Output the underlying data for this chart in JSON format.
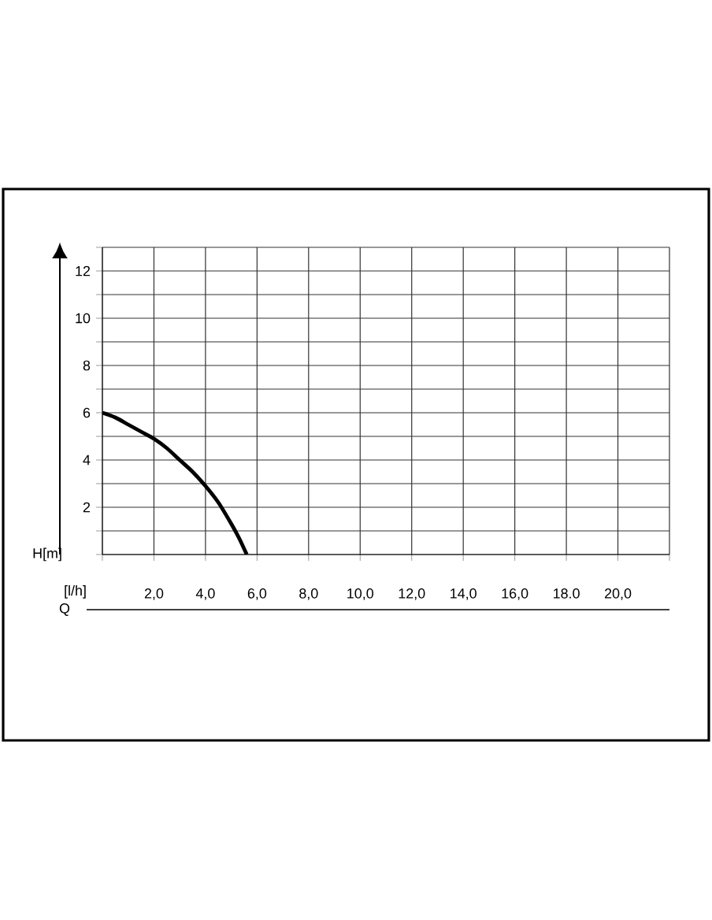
{
  "chart_data": {
    "type": "line",
    "xlabel": "[l/h]",
    "ylabel": "H[m]",
    "annotations": [
      "Q"
    ],
    "x": [
      0,
      0.5,
      1,
      1.5,
      2,
      2.5,
      3,
      3.5,
      4,
      4.5,
      5,
      5.3,
      5.6
    ],
    "values": [
      6,
      5.8,
      5.5,
      5.2,
      4.9,
      4.5,
      4.0,
      3.5,
      2.9,
      2.2,
      1.3,
      0.7,
      0
    ],
    "color": "#000000",
    "xlim": [
      0,
      22
    ],
    "ylim": [
      0,
      13
    ],
    "xticks": [
      {
        "value": 0,
        "label": null
      },
      {
        "value": 2,
        "label": "2,0"
      },
      {
        "value": 4,
        "label": "4,0"
      },
      {
        "value": 6,
        "label": "6,0"
      },
      {
        "value": 8,
        "label": "8,0"
      },
      {
        "value": 10,
        "label": "10,0"
      },
      {
        "value": 12,
        "label": "12,0"
      },
      {
        "value": 14,
        "label": "14,0"
      },
      {
        "value": 16,
        "label": "16,0"
      },
      {
        "value": 18,
        "label": "18.0"
      },
      {
        "value": 20,
        "label": "20,0"
      },
      {
        "value": 22,
        "label": null
      }
    ],
    "yticks": [
      {
        "value": 0,
        "label": null
      },
      {
        "value": 1,
        "label": null
      },
      2,
      {
        "value": 3,
        "label": null
      },
      4,
      {
        "value": 5,
        "label": null
      },
      6,
      {
        "value": 7,
        "label": null
      },
      8,
      {
        "value": 9,
        "label": null
      },
      10,
      {
        "value": 11,
        "label": null
      },
      12,
      {
        "value": 13,
        "label": null
      }
    ],
    "grid": true
  }
}
